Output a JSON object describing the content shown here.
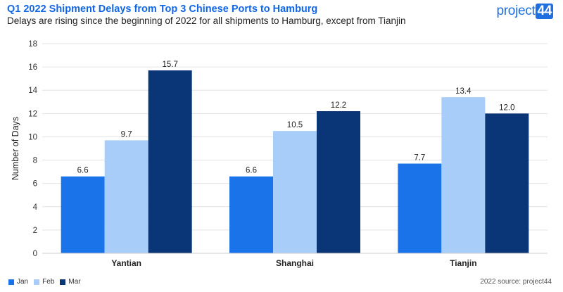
{
  "header": {
    "title": "Q1 2022 Shipment Delays from Top 3 Chinese Ports to Hamburg",
    "subtitle": "Delays are rising since the beginning of 2022 for all shipments to Hamburg, except from Tianjin"
  },
  "logo": {
    "text": "project",
    "number": "44"
  },
  "footer": {
    "source": "2022 source: project44"
  },
  "chart_data": {
    "type": "bar",
    "title": "Q1 2022 Shipment Delays from Top 3 Chinese Ports to Hamburg",
    "subtitle": "Delays are rising since the beginning of 2022 for all shipments to Hamburg, except from Tianjin",
    "xlabel": "",
    "ylabel": "Number of Days",
    "ylim": [
      0,
      18
    ],
    "yticks": [
      0,
      2,
      4,
      6,
      8,
      10,
      12,
      14,
      16,
      18
    ],
    "grid": true,
    "legend_position": "bottom-left",
    "categories": [
      "Yantian",
      "Shanghai",
      "Tianjin"
    ],
    "series": [
      {
        "name": "Jan",
        "values": [
          6.6,
          6.6,
          7.7
        ],
        "labels": [
          "6.6",
          "6.6",
          "7.7"
        ],
        "color": "#1a73e8"
      },
      {
        "name": "Feb",
        "values": [
          9.7,
          10.5,
          13.4
        ],
        "labels": [
          "9.7",
          "10.5",
          "13.4"
        ],
        "color": "#a8cdf8"
      },
      {
        "name": "Mar",
        "values": [
          15.7,
          12.2,
          12.0
        ],
        "labels": [
          "15.7",
          "12.2",
          "12.0"
        ],
        "color": "#0a3678"
      }
    ]
  }
}
